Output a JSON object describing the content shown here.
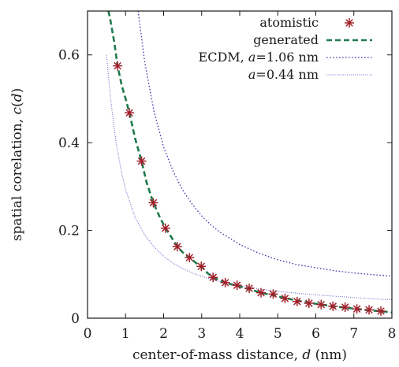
{
  "chart_data": {
    "type": "line",
    "xlabel": "center-of-mass distance, d (nm)",
    "ylabel": "spatial corelation, c(d)",
    "xlim": [
      0,
      8
    ],
    "ylim": [
      0,
      0.7
    ],
    "xticks": [
      "0",
      "1",
      "2",
      "3",
      "4",
      "5",
      "6",
      "7",
      "8"
    ],
    "yticks": [
      "0",
      "0.2",
      "0.4",
      "0.6"
    ],
    "grid": false,
    "legend_position": "top-right",
    "series": [
      {
        "name": "atomistic",
        "kind": "scatter",
        "marker": "asterisk",
        "color": "#a0202a",
        "x": [
          0.79,
          1.1,
          1.42,
          1.73,
          2.05,
          2.36,
          2.68,
          2.99,
          3.3,
          3.62,
          3.93,
          4.25,
          4.56,
          4.88,
          5.19,
          5.51,
          5.82,
          6.14,
          6.45,
          6.77,
          7.08,
          7.4,
          7.71
        ],
        "y": [
          0.575,
          0.468,
          0.358,
          0.263,
          0.205,
          0.163,
          0.138,
          0.118,
          0.093,
          0.081,
          0.075,
          0.068,
          0.058,
          0.055,
          0.045,
          0.038,
          0.034,
          0.031,
          0.027,
          0.025,
          0.021,
          0.019,
          0.016
        ]
      },
      {
        "name": "generated",
        "kind": "line",
        "dash": "dashed",
        "color": "#1f7a4d",
        "x": [
          0.5,
          0.6,
          0.7,
          0.79,
          0.9,
          1.0,
          1.1,
          1.25,
          1.42,
          1.55,
          1.73,
          1.9,
          2.05,
          2.2,
          2.36,
          2.5,
          2.68,
          2.85,
          2.99,
          3.15,
          3.3,
          3.5,
          3.7,
          3.93,
          4.25,
          4.56,
          4.88,
          5.19,
          5.51,
          5.82,
          6.14,
          6.45,
          6.77,
          7.08,
          7.4,
          7.71,
          8.0
        ],
        "y": [
          0.72,
          0.68,
          0.63,
          0.575,
          0.53,
          0.5,
          0.468,
          0.41,
          0.358,
          0.31,
          0.263,
          0.23,
          0.205,
          0.185,
          0.163,
          0.15,
          0.138,
          0.126,
          0.118,
          0.103,
          0.093,
          0.085,
          0.079,
          0.074,
          0.066,
          0.058,
          0.052,
          0.046,
          0.04,
          0.035,
          0.031,
          0.027,
          0.024,
          0.021,
          0.018,
          0.016,
          0.013
        ]
      },
      {
        "name": "ECDM, a=1.06 nm",
        "kind": "line",
        "dash": "dotted",
        "color": "#3b3bb0",
        "x": [
          1.33,
          1.5,
          1.75,
          2.0,
          2.25,
          2.5,
          2.75,
          3.0,
          3.25,
          3.5,
          4.0,
          4.5,
          5.0,
          5.5,
          6.0,
          6.5,
          7.0,
          7.5,
          8.0
        ],
        "y": [
          0.7,
          0.585,
          0.47,
          0.39,
          0.335,
          0.292,
          0.26,
          0.233,
          0.212,
          0.195,
          0.168,
          0.148,
          0.133,
          0.122,
          0.115,
          0.108,
          0.103,
          0.099,
          0.096
        ]
      },
      {
        "name": "a=0.44 nm",
        "kind": "line",
        "dash": "dotted",
        "color": "#6a6ad0",
        "x": [
          0.5,
          0.6,
          0.75,
          0.9,
          1.0,
          1.25,
          1.5,
          1.75,
          2.0,
          2.25,
          2.5,
          2.75,
          3.0,
          3.5,
          4.0,
          4.5,
          5.0,
          5.5,
          6.0,
          6.5,
          7.0,
          7.5,
          8.0
        ],
        "y": [
          0.6,
          0.505,
          0.4,
          0.33,
          0.293,
          0.23,
          0.19,
          0.162,
          0.141,
          0.125,
          0.113,
          0.103,
          0.095,
          0.083,
          0.074,
          0.067,
          0.061,
          0.057,
          0.053,
          0.05,
          0.047,
          0.044,
          0.042
        ]
      }
    ],
    "legend": [
      {
        "label": "atomistic",
        "series": 0
      },
      {
        "label": "generated",
        "series": 1
      },
      {
        "label": "ECDM, a=1.06 nm",
        "series": 2
      },
      {
        "label": "a=0.44 nm",
        "series": 3
      }
    ]
  }
}
